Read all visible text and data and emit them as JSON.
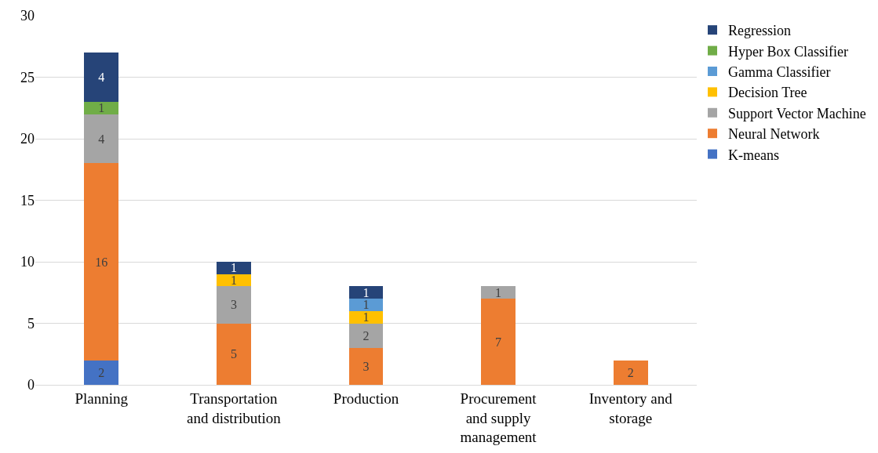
{
  "chart_data": {
    "type": "bar",
    "stacked": true,
    "categories": [
      "Planning",
      "Transportation\nand distribution",
      "Production",
      "Procurement\nand supply\nmanagement",
      "Inventory and\nstorage"
    ],
    "series": [
      {
        "name": "K-means",
        "color": "#4472c4",
        "values": [
          2,
          null,
          null,
          null,
          null
        ]
      },
      {
        "name": "Neural Network",
        "color": "#ed7d31",
        "values": [
          16,
          5,
          3,
          7,
          2
        ]
      },
      {
        "name": "Support Vector Machine",
        "color": "#a5a5a5",
        "values": [
          4,
          3,
          2,
          1,
          null
        ]
      },
      {
        "name": "Decision Tree",
        "color": "#ffc000",
        "values": [
          null,
          1,
          1,
          null,
          null
        ]
      },
      {
        "name": "Gamma Classifier",
        "color": "#5b9bd5",
        "values": [
          null,
          null,
          1,
          null,
          null
        ]
      },
      {
        "name": "Hyper Box Classifier",
        "color": "#70ad47",
        "values": [
          1,
          null,
          null,
          null,
          null
        ]
      },
      {
        "name": "Regression",
        "color": "#264478",
        "values": [
          4,
          1,
          1,
          null,
          null
        ]
      }
    ],
    "ylim": [
      0,
      30
    ],
    "yticks": [
      0,
      5,
      10,
      15,
      20,
      25,
      30
    ],
    "grid": "y",
    "legend": "right",
    "data_labels": true
  }
}
